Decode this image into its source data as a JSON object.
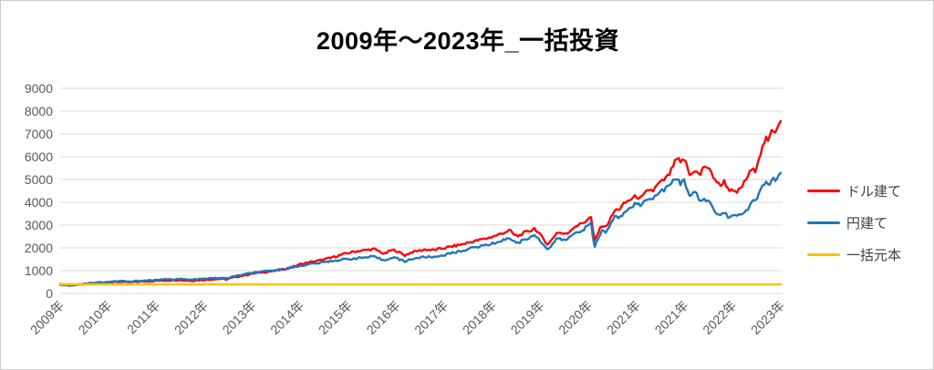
{
  "title": "2009年～2023年_一括投資",
  "legend": [
    {
      "label": "ドル建て",
      "color": "#ff0000"
    },
    {
      "label": "円建て",
      "color": "#1f76bc"
    },
    {
      "label": "一括元本",
      "color": "#ffc000"
    }
  ],
  "colors": {
    "gridline": "#d9d9d9",
    "axis_label": "#595959",
    "title": "#000000"
  },
  "chart_data": {
    "type": "line",
    "title": "2009年～2023年_一括投資",
    "xlabel": "",
    "ylabel": "",
    "ylim": [
      0,
      9000
    ],
    "grid": true,
    "legend_position": "right",
    "y_ticks": [
      0,
      1000,
      2000,
      3000,
      4000,
      5000,
      6000,
      7000,
      8000,
      9000
    ],
    "x_labels": [
      "2009年",
      "2010年",
      "2011年",
      "2012年",
      "2013年",
      "2014年",
      "2015年",
      "2016年",
      "2017年",
      "2018年",
      "2019年",
      "2020年",
      "2021年",
      "2021年",
      "2022年",
      "2023年"
    ],
    "noise_amplitude_rel": 0.016,
    "noise_amplitude_abs": 16,
    "series": [
      {
        "name": "ドル建て",
        "color": "#ff0000",
        "width": 2.4,
        "noisy": true,
        "points": [
          [
            0.0,
            400
          ],
          [
            0.006,
            375
          ],
          [
            0.012,
            355
          ],
          [
            0.02,
            370
          ],
          [
            0.03,
            400
          ],
          [
            0.042,
            445
          ],
          [
            0.055,
            470
          ],
          [
            0.067,
            490
          ],
          [
            0.078,
            505
          ],
          [
            0.088,
            515
          ],
          [
            0.095,
            480
          ],
          [
            0.105,
            510
          ],
          [
            0.118,
            535
          ],
          [
            0.133,
            550
          ],
          [
            0.148,
            570
          ],
          [
            0.163,
            590
          ],
          [
            0.172,
            575
          ],
          [
            0.18,
            555
          ],
          [
            0.19,
            575
          ],
          [
            0.2,
            590
          ],
          [
            0.212,
            625
          ],
          [
            0.222,
            640
          ],
          [
            0.23,
            615
          ],
          [
            0.24,
            700
          ],
          [
            0.25,
            760
          ],
          [
            0.258,
            810
          ],
          [
            0.267,
            870
          ],
          [
            0.28,
            930
          ],
          [
            0.295,
            980
          ],
          [
            0.31,
            1060
          ],
          [
            0.322,
            1160
          ],
          [
            0.334,
            1290
          ],
          [
            0.348,
            1380
          ],
          [
            0.362,
            1460
          ],
          [
            0.375,
            1560
          ],
          [
            0.388,
            1680
          ],
          [
            0.4,
            1780
          ],
          [
            0.412,
            1860
          ],
          [
            0.424,
            1900
          ],
          [
            0.435,
            1950
          ],
          [
            0.443,
            1850
          ],
          [
            0.45,
            1720
          ],
          [
            0.457,
            1870
          ],
          [
            0.462,
            1900
          ],
          [
            0.467,
            1870
          ],
          [
            0.473,
            1760
          ],
          [
            0.478,
            1670
          ],
          [
            0.487,
            1800
          ],
          [
            0.497,
            1870
          ],
          [
            0.507,
            1930
          ],
          [
            0.517,
            1900
          ],
          [
            0.527,
            1960
          ],
          [
            0.534,
            2000
          ],
          [
            0.545,
            2070
          ],
          [
            0.557,
            2150
          ],
          [
            0.57,
            2260
          ],
          [
            0.582,
            2350
          ],
          [
            0.592,
            2420
          ],
          [
            0.6,
            2490
          ],
          [
            0.612,
            2620
          ],
          [
            0.624,
            2780
          ],
          [
            0.63,
            2560
          ],
          [
            0.636,
            2520
          ],
          [
            0.645,
            2680
          ],
          [
            0.652,
            2740
          ],
          [
            0.658,
            2870
          ],
          [
            0.664,
            2650
          ],
          [
            0.67,
            2420
          ],
          [
            0.677,
            2130
          ],
          [
            0.684,
            2450
          ],
          [
            0.69,
            2700
          ],
          [
            0.697,
            2630
          ],
          [
            0.703,
            2600
          ],
          [
            0.712,
            2900
          ],
          [
            0.72,
            3020
          ],
          [
            0.727,
            3120
          ],
          [
            0.734,
            3300
          ],
          [
            0.737,
            3350
          ],
          [
            0.741,
            2250
          ],
          [
            0.747,
            2700
          ],
          [
            0.752,
            3000
          ],
          [
            0.757,
            2910
          ],
          [
            0.764,
            3300
          ],
          [
            0.77,
            3650
          ],
          [
            0.777,
            3730
          ],
          [
            0.783,
            3950
          ],
          [
            0.79,
            4100
          ],
          [
            0.797,
            4230
          ],
          [
            0.8,
            4260
          ],
          [
            0.806,
            4160
          ],
          [
            0.812,
            4400
          ],
          [
            0.818,
            4560
          ],
          [
            0.823,
            4510
          ],
          [
            0.83,
            4800
          ],
          [
            0.838,
            4980
          ],
          [
            0.845,
            5200
          ],
          [
            0.852,
            5700
          ],
          [
            0.857,
            5950
          ],
          [
            0.861,
            5660
          ],
          [
            0.865,
            5960
          ],
          [
            0.87,
            5600
          ],
          [
            0.874,
            5120
          ],
          [
            0.88,
            5450
          ],
          [
            0.884,
            5300
          ],
          [
            0.888,
            5160
          ],
          [
            0.893,
            5600
          ],
          [
            0.898,
            5560
          ],
          [
            0.904,
            5250
          ],
          [
            0.91,
            4960
          ],
          [
            0.916,
            4700
          ],
          [
            0.921,
            4950
          ],
          [
            0.927,
            4600
          ],
          [
            0.933,
            4480
          ],
          [
            0.938,
            4400
          ],
          [
            0.944,
            4600
          ],
          [
            0.95,
            4900
          ],
          [
            0.956,
            5250
          ],
          [
            0.96,
            5450
          ],
          [
            0.964,
            5350
          ],
          [
            0.969,
            5900
          ],
          [
            0.974,
            6350
          ],
          [
            0.979,
            6800
          ],
          [
            0.983,
            6620
          ],
          [
            0.988,
            7250
          ],
          [
            0.992,
            7100
          ],
          [
            0.996,
            7400
          ],
          [
            1.0,
            7650
          ]
        ]
      },
      {
        "name": "円建て",
        "color": "#1f76bc",
        "width": 2.4,
        "noisy": true,
        "points": [
          [
            0.0,
            400
          ],
          [
            0.006,
            370
          ],
          [
            0.012,
            350
          ],
          [
            0.02,
            370
          ],
          [
            0.03,
            405
          ],
          [
            0.042,
            455
          ],
          [
            0.055,
            485
          ],
          [
            0.067,
            510
          ],
          [
            0.078,
            530
          ],
          [
            0.088,
            545
          ],
          [
            0.095,
            505
          ],
          [
            0.105,
            540
          ],
          [
            0.118,
            570
          ],
          [
            0.133,
            590
          ],
          [
            0.148,
            615
          ],
          [
            0.163,
            635
          ],
          [
            0.172,
            620
          ],
          [
            0.18,
            600
          ],
          [
            0.19,
            620
          ],
          [
            0.2,
            640
          ],
          [
            0.212,
            670
          ],
          [
            0.222,
            685
          ],
          [
            0.23,
            655
          ],
          [
            0.24,
            740
          ],
          [
            0.25,
            800
          ],
          [
            0.258,
            850
          ],
          [
            0.267,
            900
          ],
          [
            0.28,
            950
          ],
          [
            0.295,
            1000
          ],
          [
            0.31,
            1070
          ],
          [
            0.322,
            1140
          ],
          [
            0.334,
            1220
          ],
          [
            0.348,
            1290
          ],
          [
            0.362,
            1350
          ],
          [
            0.375,
            1420
          ],
          [
            0.388,
            1470
          ],
          [
            0.4,
            1510
          ],
          [
            0.412,
            1550
          ],
          [
            0.424,
            1580
          ],
          [
            0.435,
            1610
          ],
          [
            0.443,
            1530
          ],
          [
            0.45,
            1440
          ],
          [
            0.457,
            1560
          ],
          [
            0.462,
            1580
          ],
          [
            0.467,
            1550
          ],
          [
            0.473,
            1460
          ],
          [
            0.478,
            1400
          ],
          [
            0.487,
            1510
          ],
          [
            0.497,
            1560
          ],
          [
            0.507,
            1610
          ],
          [
            0.517,
            1590
          ],
          [
            0.527,
            1650
          ],
          [
            0.534,
            1700
          ],
          [
            0.545,
            1780
          ],
          [
            0.557,
            1870
          ],
          [
            0.57,
            1980
          ],
          [
            0.582,
            2070
          ],
          [
            0.592,
            2130
          ],
          [
            0.6,
            2190
          ],
          [
            0.612,
            2310
          ],
          [
            0.624,
            2450
          ],
          [
            0.63,
            2260
          ],
          [
            0.636,
            2230
          ],
          [
            0.645,
            2380
          ],
          [
            0.652,
            2440
          ],
          [
            0.658,
            2600
          ],
          [
            0.664,
            2400
          ],
          [
            0.67,
            2180
          ],
          [
            0.677,
            1900
          ],
          [
            0.684,
            2200
          ],
          [
            0.69,
            2420
          ],
          [
            0.697,
            2360
          ],
          [
            0.703,
            2340
          ],
          [
            0.712,
            2620
          ],
          [
            0.72,
            2730
          ],
          [
            0.727,
            2820
          ],
          [
            0.734,
            3020
          ],
          [
            0.737,
            3060
          ],
          [
            0.741,
            2000
          ],
          [
            0.747,
            2450
          ],
          [
            0.752,
            2760
          ],
          [
            0.757,
            2680
          ],
          [
            0.764,
            3050
          ],
          [
            0.77,
            3380
          ],
          [
            0.777,
            3320
          ],
          [
            0.783,
            3600
          ],
          [
            0.79,
            3780
          ],
          [
            0.797,
            3920
          ],
          [
            0.8,
            3950
          ],
          [
            0.806,
            3850
          ],
          [
            0.812,
            4080
          ],
          [
            0.818,
            4220
          ],
          [
            0.823,
            4170
          ],
          [
            0.83,
            4420
          ],
          [
            0.838,
            4560
          ],
          [
            0.845,
            4720
          ],
          [
            0.852,
            4950
          ],
          [
            0.857,
            5060
          ],
          [
            0.861,
            4820
          ],
          [
            0.865,
            5000
          ],
          [
            0.87,
            4650
          ],
          [
            0.874,
            4260
          ],
          [
            0.88,
            4480
          ],
          [
            0.884,
            4300
          ],
          [
            0.888,
            3960
          ],
          [
            0.893,
            4160
          ],
          [
            0.898,
            4100
          ],
          [
            0.904,
            3850
          ],
          [
            0.91,
            3520
          ],
          [
            0.916,
            3420
          ],
          [
            0.921,
            3580
          ],
          [
            0.927,
            3380
          ],
          [
            0.933,
            3420
          ],
          [
            0.938,
            3380
          ],
          [
            0.944,
            3460
          ],
          [
            0.95,
            3560
          ],
          [
            0.956,
            3800
          ],
          [
            0.96,
            4080
          ],
          [
            0.964,
            3980
          ],
          [
            0.969,
            4350
          ],
          [
            0.974,
            4630
          ],
          [
            0.979,
            4900
          ],
          [
            0.983,
            4740
          ],
          [
            0.988,
            5050
          ],
          [
            0.992,
            4940
          ],
          [
            0.996,
            5080
          ],
          [
            1.0,
            5250
          ]
        ]
      },
      {
        "name": "一括元本",
        "color": "#ffc000",
        "width": 2.6,
        "noisy": false,
        "points": [
          [
            0.0,
            400
          ],
          [
            1.0,
            400
          ]
        ]
      }
    ]
  }
}
